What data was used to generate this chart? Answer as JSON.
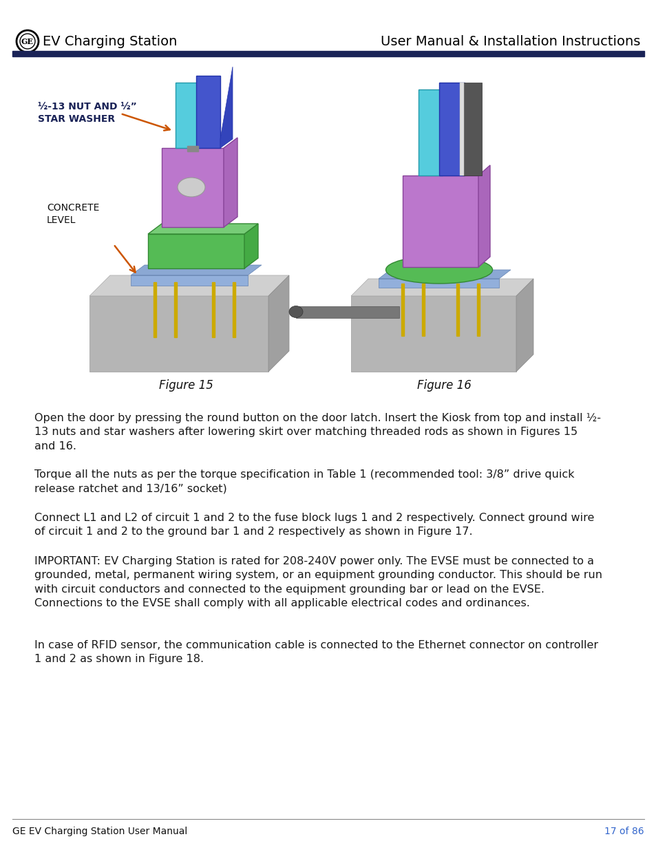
{
  "header_left": "EV Charging Station",
  "header_right": "User Manual & Installation Instructions",
  "header_bar_color": "#1a2357",
  "footer_left": "GE EV Charging Station User Manual",
  "footer_right": "17 of 86",
  "footer_page_color": "#3366cc",
  "label_nut": "½-13 NUT AND ½”\nSTAR WASHER",
  "label_concrete": "CONCRETE\nLEVEL",
  "label_nut_color": "#1a2357",
  "arrow_color": "#cc5500",
  "fig15_caption": "Figure 15",
  "fig16_caption": "Figure 16",
  "paragraph1": "Open the door by pressing the round button on the door latch. Insert the Kiosk from top and install ½-\n13 nuts and star washers after lowering skirt over matching threaded rods as shown in Figures 15\nand 16.",
  "paragraph2": "Torque all the nuts as per the torque specification in Table 1 (recommended tool: 3/8” drive quick\nrelease ratchet and 13/16” socket)",
  "paragraph3": "Connect L1 and L2 of circuit 1 and 2 to the fuse block lugs 1 and 2 respectively. Connect ground wire\nof circuit 1 and 2 to the ground bar 1 and 2 respectively as shown in Figure 17.",
  "paragraph4": "IMPORTANT: EV Charging Station is rated for 208-240V power only. The EVSE must be connected to a\ngrounded, metal, permanent wiring system, or an equipment grounding conductor. This should be run\nwith circuit conductors and connected to the equipment grounding bar or lead on the EVSE.\nConnections to the EVSE shall comply with all applicable electrical codes and ordinances.",
  "paragraph5": "In case of RFID sensor, the communication cable is connected to the Ethernet connector on controller\n1 and 2 as shown in Figure 18.",
  "bg_color": "#ffffff",
  "text_color": "#1a1a1a",
  "font_size_body": 11.5,
  "font_size_header": 14,
  "font_size_label_nut": 10,
  "font_size_label_concrete": 10,
  "font_size_caption": 12,
  "font_size_footer": 10
}
